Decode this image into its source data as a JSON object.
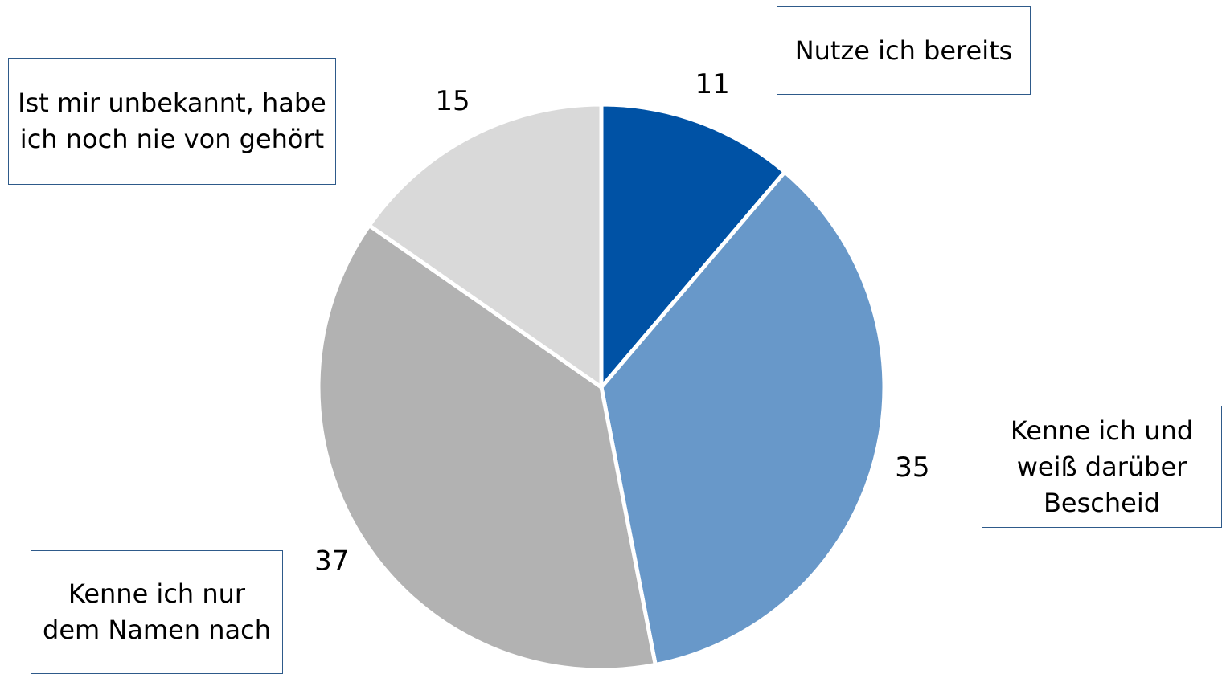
{
  "chart_data": {
    "type": "pie",
    "categories": [
      "Nutze ich bereits",
      "Kenne ich und weiß darüber Bescheid",
      "Kenne ich nur dem Namen nach",
      "Ist mir unbekannt, habe ich noch nie von gehört"
    ],
    "values": [
      11,
      35,
      37,
      15
    ],
    "colors": [
      "#0052a5",
      "#6898c9",
      "#b2b2b2",
      "#d9d9d9"
    ]
  }
}
